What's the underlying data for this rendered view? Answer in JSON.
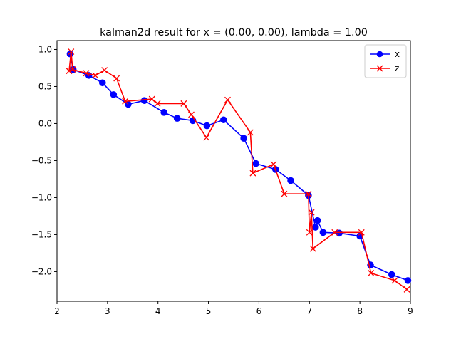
{
  "chart_data": {
    "type": "line",
    "title": "kalman2d result for x = (0.00, 0.00), lambda = 1.00",
    "xlabel": "",
    "ylabel": "",
    "xlim": [
      2.0,
      9.0
    ],
    "ylim": [
      -2.4,
      1.12
    ],
    "xticks": [
      "2",
      "3",
      "4",
      "5",
      "6",
      "7",
      "8",
      "9"
    ],
    "yticks": [
      "1.0",
      "0.5",
      "0.0",
      "−0.5",
      "−1.0",
      "−1.5",
      "−2.0"
    ],
    "grid": false,
    "legend_position": "top-right",
    "series": [
      {
        "name": "x",
        "color": "#0000ff",
        "marker": "circle",
        "points": [
          [
            2.26,
            0.94
          ],
          [
            2.32,
            0.73
          ],
          [
            2.63,
            0.65
          ],
          [
            2.9,
            0.55
          ],
          [
            3.12,
            0.39
          ],
          [
            3.41,
            0.26
          ],
          [
            3.73,
            0.31
          ],
          [
            4.12,
            0.15
          ],
          [
            4.38,
            0.07
          ],
          [
            4.69,
            0.04
          ],
          [
            4.97,
            -0.03
          ],
          [
            5.3,
            0.05
          ],
          [
            5.7,
            -0.2
          ],
          [
            5.94,
            -0.54
          ],
          [
            6.33,
            -0.62
          ],
          [
            6.63,
            -0.77
          ],
          [
            6.98,
            -0.97
          ],
          [
            7.12,
            -1.4
          ],
          [
            7.16,
            -1.31
          ],
          [
            7.27,
            -1.47
          ],
          [
            7.59,
            -1.48
          ],
          [
            8.0,
            -1.52
          ],
          [
            8.21,
            -1.91
          ],
          [
            8.63,
            -2.04
          ],
          [
            8.95,
            -2.12
          ]
        ]
      },
      {
        "name": "z",
        "color": "#ff0000",
        "marker": "x",
        "points": [
          [
            2.24,
            0.71
          ],
          [
            2.28,
            0.97
          ],
          [
            2.31,
            0.73
          ],
          [
            2.58,
            0.68
          ],
          [
            2.76,
            0.65
          ],
          [
            2.94,
            0.72
          ],
          [
            3.18,
            0.61
          ],
          [
            3.35,
            0.3
          ],
          [
            3.88,
            0.33
          ],
          [
            3.99,
            0.27
          ],
          [
            4.51,
            0.27
          ],
          [
            4.66,
            0.12
          ],
          [
            4.96,
            -0.19
          ],
          [
            5.38,
            0.32
          ],
          [
            5.83,
            -0.12
          ],
          [
            5.88,
            -0.67
          ],
          [
            6.29,
            -0.55
          ],
          [
            6.5,
            -0.95
          ],
          [
            6.98,
            -0.95
          ],
          [
            7.0,
            -1.47
          ],
          [
            7.04,
            -1.2
          ],
          [
            7.07,
            -1.69
          ],
          [
            7.5,
            -1.47
          ],
          [
            8.03,
            -1.47
          ],
          [
            8.22,
            -2.02
          ],
          [
            8.69,
            -2.12
          ],
          [
            8.93,
            -2.24
          ]
        ]
      }
    ]
  }
}
